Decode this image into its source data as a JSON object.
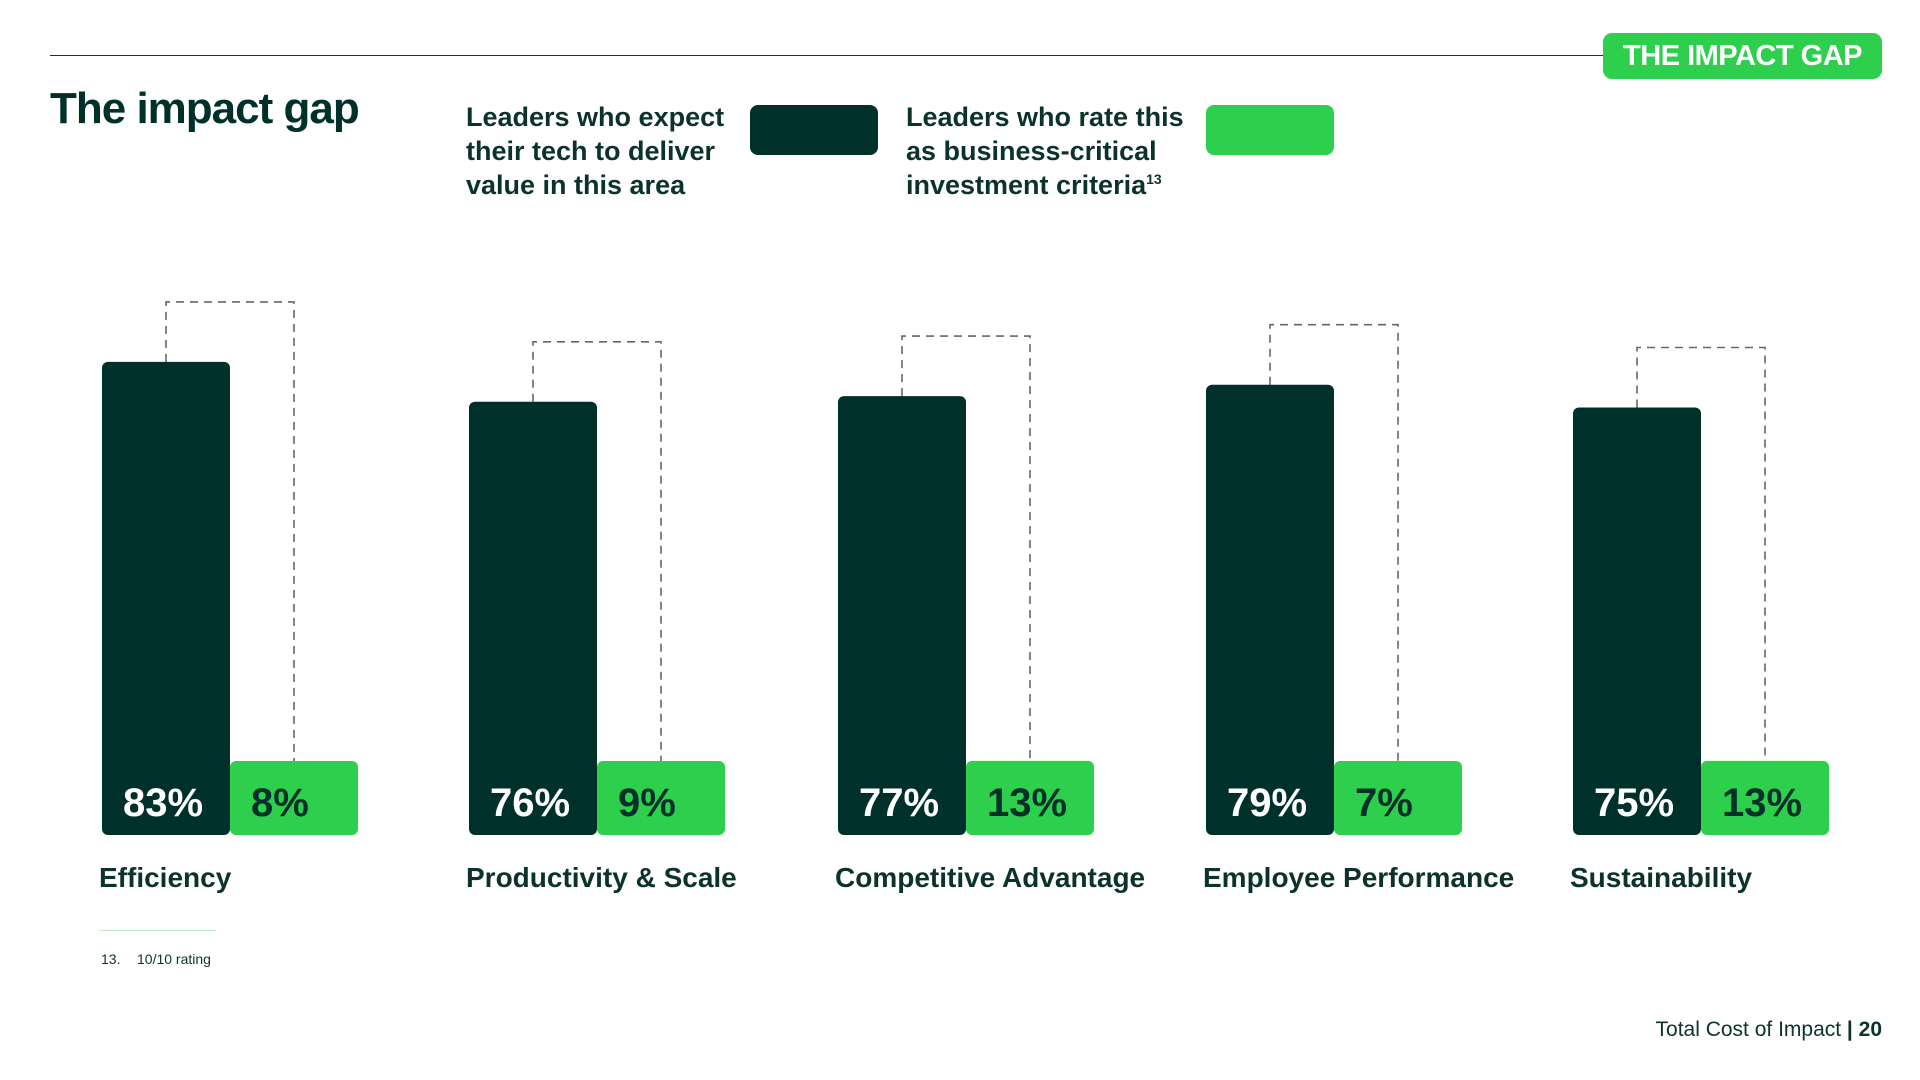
{
  "header": {
    "tag_label": "THE IMPACT GAP",
    "title": "The impact gap"
  },
  "legend": {
    "expect_text": "Leaders who expect\ntheir tech to deliver\nvalue in this area",
    "critical_text": "Leaders who rate this\nas business-critical\ninvestment criteria",
    "critical_sup": "13"
  },
  "colors": {
    "dark": "#00302a",
    "green": "#2fcf4e",
    "label": "#ffffff",
    "connector": "#5d6b68"
  },
  "chart_data": {
    "type": "bar",
    "categories": [
      "Efficiency",
      "Productivity & Scale",
      "Competitive Advantage",
      "Employee Performance",
      "Sustainability"
    ],
    "series": [
      {
        "values": [
          83,
          76,
          77,
          79,
          75
        ],
        "labels": [
          "83%",
          "76%",
          "77%",
          "79%",
          "75%"
        ]
      },
      {
        "values": [
          8,
          9,
          13,
          7,
          13
        ],
        "labels": [
          "8%",
          "9%",
          "13%",
          "7%",
          "13%"
        ]
      }
    ],
    "ylim": [
      0,
      100
    ],
    "xlabel": "",
    "ylabel": "",
    "grid": false
  },
  "footnote": {
    "number": "13.",
    "text": "10/10 rating"
  },
  "footer": {
    "text": "Total Cost of Impact",
    "separator": " | ",
    "page": "20"
  }
}
